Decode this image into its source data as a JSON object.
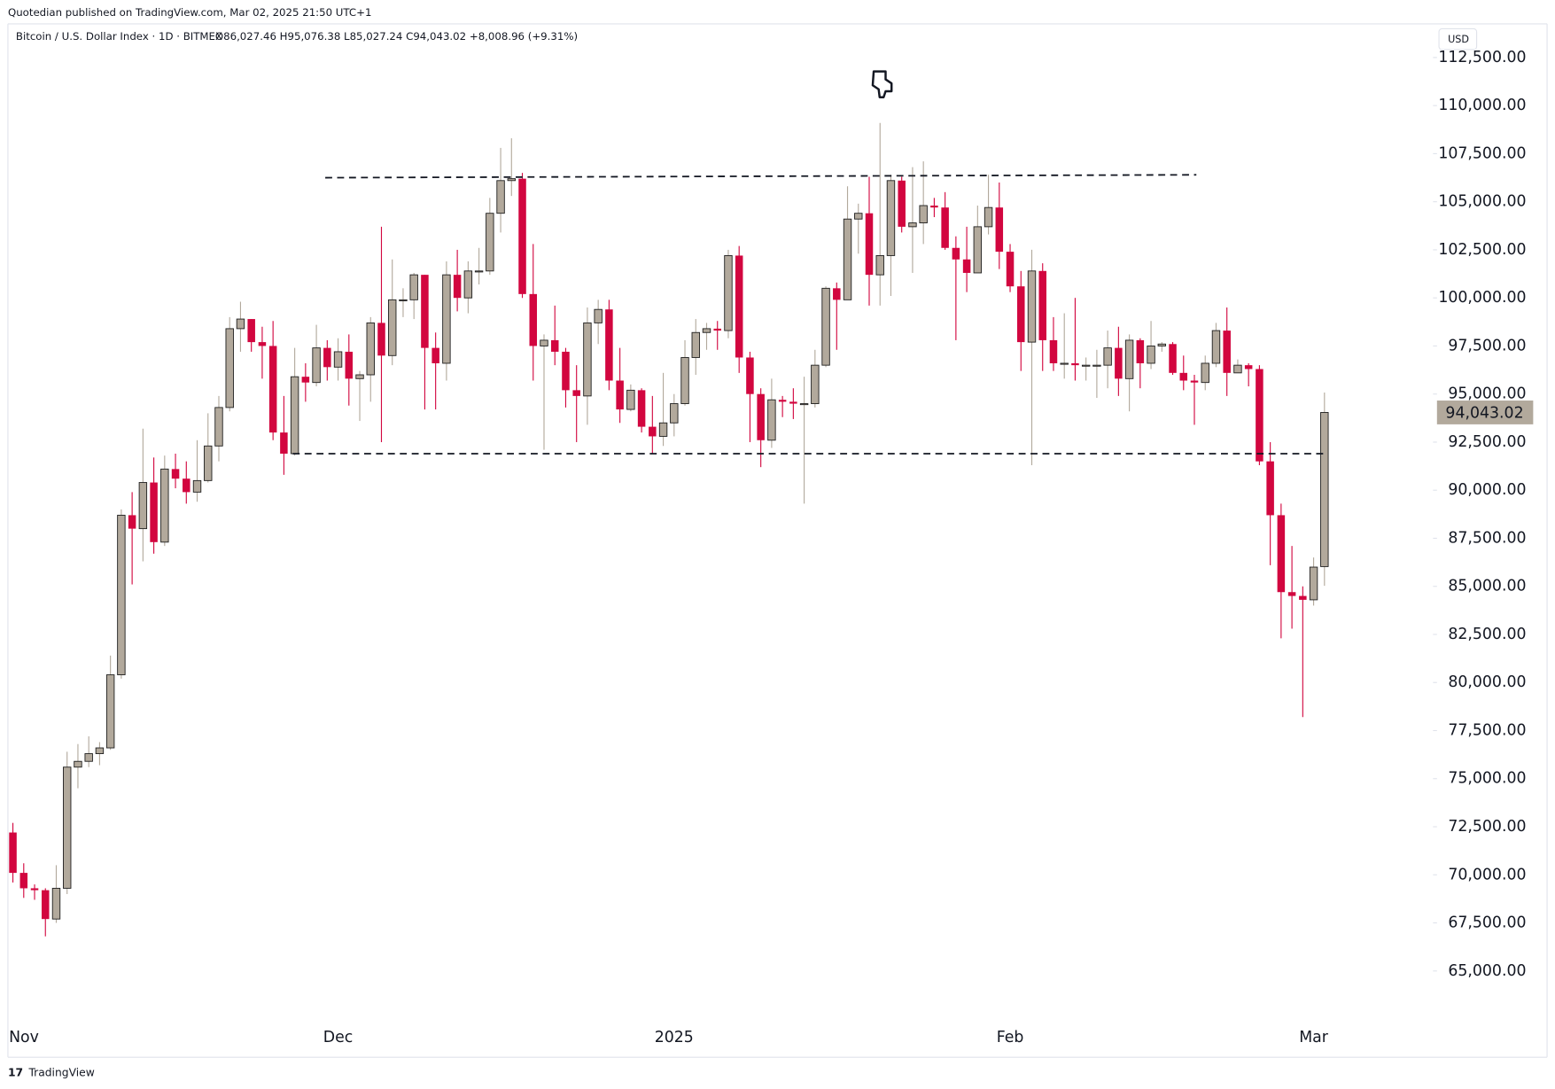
{
  "chart_data": {
    "type": "candlestick",
    "publisher": "Quotedian published on TradingView.com, Mar 02, 2025 21:50 UTC+1",
    "title": "Bitcoin / U.S. Dollar Index · 1D · BITMEX",
    "legend_ohlc": "O86,027.46 H95,076.38 L85,027.24 C94,043.02 +8,008.96 (+9.31%)",
    "currency": "USD",
    "brand": "TradingView",
    "up_color": "#b2a99c",
    "down_color": "#d2063f",
    "categories": [
      "Nov",
      null,
      null,
      null,
      null,
      null,
      null,
      null,
      null,
      null,
      null,
      null,
      null,
      null,
      null,
      null,
      null,
      null,
      null,
      null,
      null,
      null,
      null,
      null,
      null,
      null,
      null,
      null,
      null,
      null,
      "Dec",
      null,
      null,
      null,
      null,
      null,
      null,
      null,
      null,
      null,
      null,
      null,
      null,
      null,
      null,
      null,
      null,
      null,
      null,
      null,
      null,
      null,
      null,
      null,
      null,
      null,
      null,
      null,
      null,
      null,
      null,
      "2025",
      null,
      null,
      null,
      null,
      null,
      null,
      null,
      null,
      null,
      null,
      null,
      null,
      null,
      null,
      null,
      null,
      null,
      null,
      null,
      null,
      null,
      null,
      null,
      null,
      null,
      null,
      null,
      null,
      null,
      null,
      "Feb",
      null,
      null,
      null,
      null,
      null,
      null,
      null,
      null,
      null,
      null,
      null,
      null,
      null,
      null,
      null,
      null,
      null,
      null,
      null,
      null,
      null,
      null,
      null,
      null,
      null,
      null,
      null,
      "Mar",
      null
    ],
    "ohlc": [
      [
        72200,
        72700,
        69600,
        70100
      ],
      [
        70100,
        70600,
        68800,
        69300
      ],
      [
        69300,
        69500,
        68700,
        69200
      ],
      [
        69200,
        69300,
        66800,
        67700
      ],
      [
        67700,
        70500,
        67500,
        69300
      ],
      [
        69300,
        76400,
        69000,
        75600
      ],
      [
        75600,
        76800,
        74500,
        75900
      ],
      [
        75900,
        77200,
        75600,
        76300
      ],
      [
        76300,
        76900,
        75700,
        76600
      ],
      [
        76600,
        81400,
        76500,
        80400
      ],
      [
        80400,
        89000,
        80200,
        88700
      ],
      [
        88700,
        89900,
        85100,
        88000
      ],
      [
        88000,
        93200,
        86300,
        90400
      ],
      [
        90400,
        91700,
        86700,
        87300
      ],
      [
        87300,
        91800,
        87100,
        91100
      ],
      [
        91100,
        91900,
        90100,
        90600
      ],
      [
        90600,
        91500,
        89300,
        89900
      ],
      [
        89900,
        92600,
        89400,
        90500
      ],
      [
        90500,
        94000,
        90400,
        92300
      ],
      [
        92300,
        94900,
        91500,
        94300
      ],
      [
        94300,
        99000,
        94100,
        98400
      ],
      [
        98400,
        99800,
        97200,
        98900
      ],
      [
        98900,
        98900,
        97200,
        97700
      ],
      [
        97700,
        98500,
        95800,
        97500
      ],
      [
        97500,
        98800,
        92600,
        93000
      ],
      [
        93000,
        94900,
        90800,
        91900
      ],
      [
        91900,
        97400,
        91800,
        95900
      ],
      [
        95900,
        96600,
        94600,
        95600
      ],
      [
        95600,
        98600,
        95400,
        97400
      ],
      [
        97400,
        97800,
        95700,
        96400
      ],
      [
        96400,
        97900,
        95700,
        97200
      ],
      [
        97200,
        98100,
        94400,
        95800
      ],
      [
        95800,
        96200,
        93600,
        96000
      ],
      [
        96000,
        99000,
        94600,
        98700
      ],
      [
        98700,
        103700,
        92500,
        97000
      ],
      [
        97000,
        102000,
        96500,
        99900
      ],
      [
        99900,
        100500,
        99000,
        99900
      ],
      [
        99900,
        101300,
        98900,
        101200
      ],
      [
        101200,
        101200,
        94200,
        97400
      ],
      [
        97400,
        98200,
        94200,
        96600
      ],
      [
        96600,
        101900,
        95700,
        101200
      ],
      [
        101200,
        102500,
        99300,
        100000
      ],
      [
        100000,
        101900,
        99200,
        101400
      ],
      [
        101400,
        102600,
        100700,
        101400
      ],
      [
        101400,
        105200,
        101200,
        104400
      ],
      [
        104400,
        107800,
        103400,
        106100
      ],
      [
        106100,
        108300,
        105300,
        106200
      ],
      [
        106200,
        106500,
        100000,
        100200
      ],
      [
        100200,
        102800,
        95700,
        97500
      ],
      [
        97500,
        98100,
        92100,
        97800
      ],
      [
        97800,
        99600,
        96500,
        97200
      ],
      [
        97200,
        97400,
        94300,
        95200
      ],
      [
        95200,
        96500,
        92500,
        94900
      ],
      [
        94900,
        99500,
        93400,
        98700
      ],
      [
        98700,
        99900,
        97600,
        99400
      ],
      [
        99400,
        99900,
        95200,
        95700
      ],
      [
        95700,
        97400,
        93500,
        94200
      ],
      [
        94200,
        95500,
        94100,
        95200
      ],
      [
        95200,
        95300,
        93000,
        93300
      ],
      [
        93300,
        94900,
        91900,
        92800
      ],
      [
        92800,
        96100,
        92300,
        93500
      ],
      [
        93500,
        95000,
        92800,
        94500
      ],
      [
        94500,
        97800,
        94400,
        96900
      ],
      [
        96900,
        98900,
        96000,
        98200
      ],
      [
        98200,
        98700,
        97300,
        98400
      ],
      [
        98400,
        98800,
        97300,
        98300
      ],
      [
        98300,
        102500,
        97900,
        102200
      ],
      [
        102200,
        102700,
        96100,
        96900
      ],
      [
        96900,
        97200,
        92500,
        95000
      ],
      [
        95000,
        95300,
        91200,
        92600
      ],
      [
        92600,
        95800,
        92200,
        94700
      ],
      [
        94700,
        94900,
        93800,
        94600
      ],
      [
        94600,
        95300,
        93700,
        94500
      ],
      [
        94500,
        95900,
        89300,
        94500
      ],
      [
        94500,
        97300,
        94300,
        96500
      ],
      [
        96500,
        100600,
        96400,
        100500
      ],
      [
        100500,
        100800,
        97300,
        99900
      ],
      [
        99900,
        105800,
        99900,
        104100
      ],
      [
        104100,
        104900,
        102300,
        104400
      ],
      [
        104400,
        106300,
        99600,
        101200
      ],
      [
        101200,
        109100,
        99600,
        102200
      ],
      [
        102200,
        106400,
        100100,
        106100
      ],
      [
        106100,
        106300,
        103400,
        103700
      ],
      [
        103700,
        106800,
        101300,
        103900
      ],
      [
        103900,
        107100,
        102800,
        104800
      ],
      [
        104800,
        105200,
        104200,
        104700
      ],
      [
        104700,
        105500,
        102500,
        102600
      ],
      [
        102600,
        103200,
        97800,
        102000
      ],
      [
        102000,
        103700,
        100300,
        101300
      ],
      [
        101300,
        104800,
        101300,
        103700
      ],
      [
        103700,
        106400,
        103300,
        104700
      ],
      [
        104700,
        106000,
        101500,
        102400
      ],
      [
        102400,
        102800,
        100300,
        100600
      ],
      [
        100600,
        101400,
        96200,
        97700
      ],
      [
        97700,
        102500,
        91300,
        101400
      ],
      [
        101400,
        101800,
        96200,
        97800
      ],
      [
        97800,
        99000,
        96200,
        96600
      ],
      [
        96600,
        99200,
        95800,
        96600
      ],
      [
        96600,
        100000,
        95700,
        96500
      ],
      [
        96500,
        96900,
        95700,
        96500
      ],
      [
        96500,
        97300,
        94800,
        96500
      ],
      [
        96500,
        98300,
        95300,
        97400
      ],
      [
        97400,
        98500,
        94900,
        95800
      ],
      [
        95800,
        98100,
        94100,
        97800
      ],
      [
        97800,
        97900,
        95300,
        96600
      ],
      [
        96600,
        98800,
        96300,
        97500
      ],
      [
        97500,
        97700,
        97200,
        97600
      ],
      [
        97600,
        97700,
        96000,
        96100
      ],
      [
        96100,
        97000,
        95200,
        95700
      ],
      [
        95700,
        96000,
        93400,
        95600
      ],
      [
        95600,
        97000,
        95200,
        96600
      ],
      [
        96600,
        98700,
        96400,
        98300
      ],
      [
        98300,
        99500,
        94900,
        96100
      ],
      [
        96100,
        96800,
        96100,
        96500
      ],
      [
        96500,
        96600,
        95400,
        96300
      ],
      [
        96300,
        96500,
        91300,
        91500
      ],
      [
        91500,
        92500,
        86100,
        88700
      ],
      [
        88700,
        89300,
        82300,
        84700
      ],
      [
        84700,
        87100,
        82800,
        84500
      ],
      [
        84500,
        85000,
        78200,
        84300
      ],
      [
        84300,
        86500,
        84000,
        86000
      ],
      [
        86027.46,
        95076.38,
        85027.24,
        94043.02
      ]
    ],
    "last_price_label": "94,043.02",
    "levels": [
      {
        "from": 29,
        "to": 109,
        "start_value": 106250,
        "end_value": 106400
      },
      {
        "from": 26,
        "to": 121,
        "start_value": 91900,
        "end_value": 91900
      }
    ],
    "ylim": [
      62370,
      114200
    ],
    "yticks": [
      {
        "value": 65000,
        "label": "65,000.00"
      },
      {
        "value": 67500,
        "label": "67,500.00"
      },
      {
        "value": 70000,
        "label": "70,000.00"
      },
      {
        "value": 72500,
        "label": "72,500.00"
      },
      {
        "value": 75000,
        "label": "75,000.00"
      },
      {
        "value": 77500,
        "label": "77,500.00"
      },
      {
        "value": 80000,
        "label": "80,000.00"
      },
      {
        "value": 82500,
        "label": "82,500.00"
      },
      {
        "value": 85000,
        "label": "85,000.00"
      },
      {
        "value": 87500,
        "label": "87,500.00"
      },
      {
        "value": 90000,
        "label": "90,000.00"
      },
      {
        "value": 92500,
        "label": "92,500.00"
      },
      {
        "value": 95000,
        "label": "95,000.00"
      },
      {
        "value": 97500,
        "label": "97,500.00"
      },
      {
        "value": 100000,
        "label": "100,000.00"
      },
      {
        "value": 102500,
        "label": "102,500.00"
      },
      {
        "value": 105000,
        "label": "105,000.00"
      },
      {
        "value": 107500,
        "label": "107,500.00"
      },
      {
        "value": 110000,
        "label": "110,000.00"
      },
      {
        "value": 112500,
        "label": "112,500.00"
      }
    ],
    "grid": false
  }
}
